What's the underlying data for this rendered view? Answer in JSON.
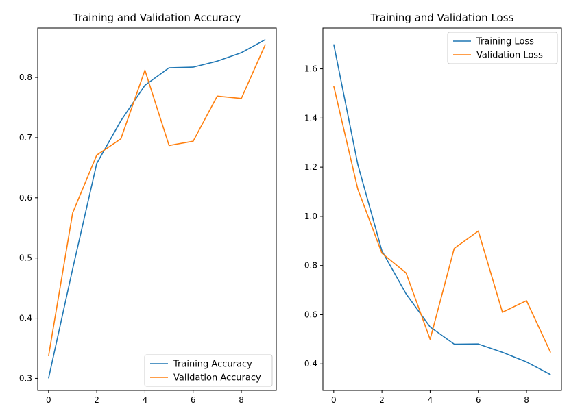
{
  "colors": {
    "training": "#1f77b4",
    "validation": "#ff7f0e",
    "axis": "#000000",
    "legend_border": "#cccccc"
  },
  "chart_data": [
    {
      "type": "line",
      "title": "Training and Validation Accuracy",
      "xlabel": "",
      "ylabel": "",
      "x": [
        0,
        1,
        2,
        3,
        4,
        5,
        6,
        7,
        8,
        9
      ],
      "xlim": [
        -0.45,
        9.45
      ],
      "ylim": [
        0.28,
        0.882
      ],
      "xticks": [
        0,
        2,
        4,
        6,
        8
      ],
      "yticks": [
        0.3,
        0.4,
        0.5,
        0.6,
        0.7,
        0.8
      ],
      "ytick_labels": [
        "0.3",
        "0.4",
        "0.5",
        "0.6",
        "0.7",
        "0.8"
      ],
      "legend": "lower-right",
      "grid": false,
      "series": [
        {
          "name": "Training Accuracy",
          "color": "#1f77b4",
          "values": [
            0.3,
            0.482,
            0.657,
            0.728,
            0.787,
            0.816,
            0.817,
            0.827,
            0.841,
            0.863
          ]
        },
        {
          "name": "Validation Accuracy",
          "color": "#ff7f0e",
          "values": [
            0.337,
            0.575,
            0.671,
            0.698,
            0.812,
            0.687,
            0.694,
            0.769,
            0.765,
            0.855
          ]
        }
      ]
    },
    {
      "type": "line",
      "title": "Training and Validation Loss",
      "xlabel": "",
      "ylabel": "",
      "x": [
        0,
        1,
        2,
        3,
        4,
        5,
        6,
        7,
        8,
        9
      ],
      "xlim": [
        -0.45,
        9.45
      ],
      "ylim": [
        0.292,
        1.766
      ],
      "xticks": [
        0,
        2,
        4,
        6,
        8
      ],
      "yticks": [
        0.4,
        0.6,
        0.8,
        1.0,
        1.2,
        1.4,
        1.6
      ],
      "ytick_labels": [
        "0.4",
        "0.6",
        "0.8",
        "1.0",
        "1.2",
        "1.4",
        "1.6"
      ],
      "legend": "upper-right",
      "grid": false,
      "series": [
        {
          "name": "Training Loss",
          "color": "#1f77b4",
          "values": [
            1.7,
            1.21,
            0.86,
            0.685,
            0.55,
            0.48,
            0.481,
            0.447,
            0.408,
            0.356
          ]
        },
        {
          "name": "Validation Loss",
          "color": "#ff7f0e",
          "values": [
            1.53,
            1.11,
            0.85,
            0.77,
            0.5,
            0.87,
            0.94,
            0.61,
            0.657,
            0.446
          ]
        }
      ]
    }
  ]
}
